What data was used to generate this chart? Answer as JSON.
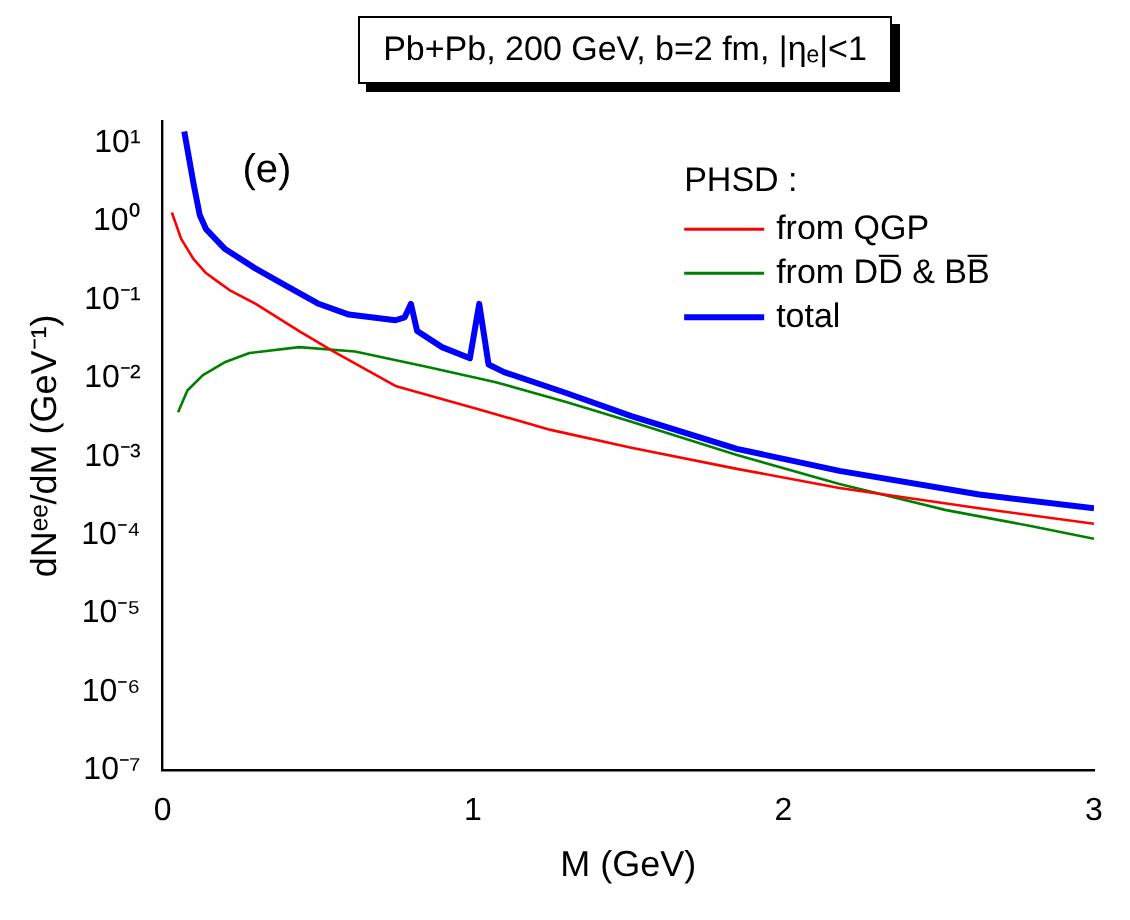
{
  "chart_data": {
    "type": "line",
    "title": "Pb+Pb, 200 GeV, b=2 fm, |ηₑ|<1",
    "xlabel": "M (GeV)",
    "ylabel": "dNᵉᵉ/dM (GeV⁻¹)",
    "legend_title": "PHSD :",
    "annotations": [
      "(e)"
    ],
    "log": "y",
    "legend": "top right",
    "grid": false,
    "marker": "none",
    "line_style": "solid",
    "xlim": [
      0,
      3
    ],
    "xticks": [
      0,
      1,
      2,
      3
    ],
    "ylim": [
      1e-07,
      19
    ],
    "yticks": [
      {
        "value": 1e-07,
        "label": "10⁻⁷"
      },
      {
        "value": 1e-06,
        "label": "10⁻⁶"
      },
      {
        "value": 1e-05,
        "label": "10⁻⁵"
      },
      {
        "value": 0.0001,
        "label": "10⁻⁴"
      },
      {
        "value": 0.001,
        "label": "10⁻³"
      },
      {
        "value": 0.01,
        "label": "10⁻²"
      },
      {
        "value": 0.1,
        "label": "10⁻¹"
      },
      {
        "value": 1,
        "label": "10⁰"
      },
      {
        "value": 10,
        "label": "10¹"
      }
    ],
    "series": [
      {
        "name": "from QGP",
        "color": "#ff0000",
        "x": [
          0.03,
          0.06,
          0.1,
          0.14,
          0.17,
          0.22,
          0.3,
          0.44,
          0.55,
          0.75,
          1.02,
          1.25,
          1.51,
          1.85,
          2.18,
          2.63,
          3.0
        ],
        "values": [
          1.3,
          0.6,
          0.33,
          0.22,
          0.18,
          0.13,
          0.089,
          0.04,
          0.022,
          0.008,
          0.004,
          0.0022,
          0.0013,
          0.0007,
          0.0004,
          0.00022,
          0.00014
        ]
      },
      {
        "name": "from DD̅ & BB̅",
        "color": "#008000",
        "x": [
          0.05,
          0.08,
          0.13,
          0.2,
          0.28,
          0.44,
          0.62,
          0.85,
          1.07,
          1.3,
          1.51,
          1.85,
          2.18,
          2.52,
          2.8,
          3.0
        ],
        "values": [
          0.0037,
          0.007,
          0.011,
          0.016,
          0.021,
          0.025,
          0.022,
          0.014,
          0.009,
          0.005,
          0.0028,
          0.00105,
          0.00045,
          0.00021,
          0.00013,
          9e-05
        ]
      },
      {
        "name": "total",
        "color": "#0000ff",
        "x": [
          0.07,
          0.1,
          0.12,
          0.14,
          0.2,
          0.3,
          0.4,
          0.5,
          0.6,
          0.75,
          0.78,
          0.8,
          0.82,
          0.9,
          0.99,
          1.02,
          1.05,
          1.1,
          1.3,
          1.51,
          1.85,
          2.18,
          2.63,
          3.0
        ],
        "values": [
          14,
          3,
          1.2,
          0.8,
          0.45,
          0.25,
          0.15,
          0.09,
          0.065,
          0.055,
          0.06,
          0.089,
          0.04,
          0.025,
          0.018,
          0.089,
          0.015,
          0.012,
          0.0065,
          0.0033,
          0.00126,
          0.00066,
          0.00033,
          0.00022
        ]
      }
    ]
  }
}
